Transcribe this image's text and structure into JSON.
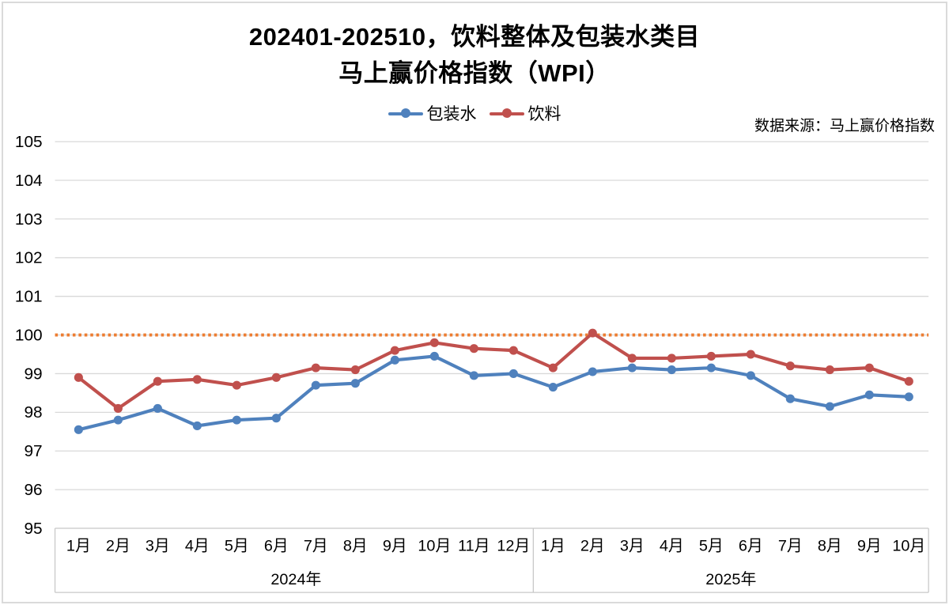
{
  "title": {
    "line1": "202401-202510，饮料整体及包装水类目",
    "line2": "马上赢价格指数（WPI）"
  },
  "source_note": "数据来源：马上赢价格指数",
  "legend": [
    {
      "label": "包装水",
      "color": "#4F81BD"
    },
    {
      "label": "饮料",
      "color": "#C0504D"
    }
  ],
  "colors": {
    "packaged_water": "#4F81BD",
    "beverage": "#C0504D",
    "reference_line": "#ED7D31",
    "gridline": "#D9D9D9",
    "axis_border": "#C8C8C8"
  },
  "chart_data": {
    "type": "line",
    "title": "202401-202510，饮料整体及包装水类目 马上赢价格指数（WPI）",
    "x_groups": [
      {
        "year": "2024年",
        "months": [
          "1月",
          "2月",
          "3月",
          "4月",
          "5月",
          "6月",
          "7月",
          "8月",
          "9月",
          "10月",
          "11月",
          "12月"
        ]
      },
      {
        "year": "2025年",
        "months": [
          "1月",
          "2月",
          "3月",
          "4月",
          "5月",
          "6月",
          "7月",
          "8月",
          "9月",
          "10月"
        ]
      }
    ],
    "series": [
      {
        "name": "包装水",
        "color": "#4F81BD",
        "values": [
          97.55,
          97.8,
          98.1,
          97.65,
          97.8,
          97.85,
          98.7,
          98.75,
          99.35,
          99.45,
          98.95,
          99.0,
          98.65,
          99.05,
          99.15,
          99.1,
          99.15,
          98.95,
          98.35,
          98.15,
          98.45,
          98.4
        ]
      },
      {
        "name": "饮料",
        "color": "#C0504D",
        "values": [
          98.9,
          98.1,
          98.8,
          98.85,
          98.7,
          98.9,
          99.15,
          99.1,
          99.6,
          99.8,
          99.65,
          99.6,
          99.15,
          100.05,
          99.4,
          99.4,
          99.45,
          99.5,
          99.2,
          99.1,
          99.15,
          98.8
        ]
      }
    ],
    "ylim": [
      95,
      105
    ],
    "ytick_step": 1,
    "reference_line": {
      "value": 100,
      "color": "#ED7D31",
      "style": "dotted"
    },
    "grid": true,
    "legend_position": "top"
  }
}
